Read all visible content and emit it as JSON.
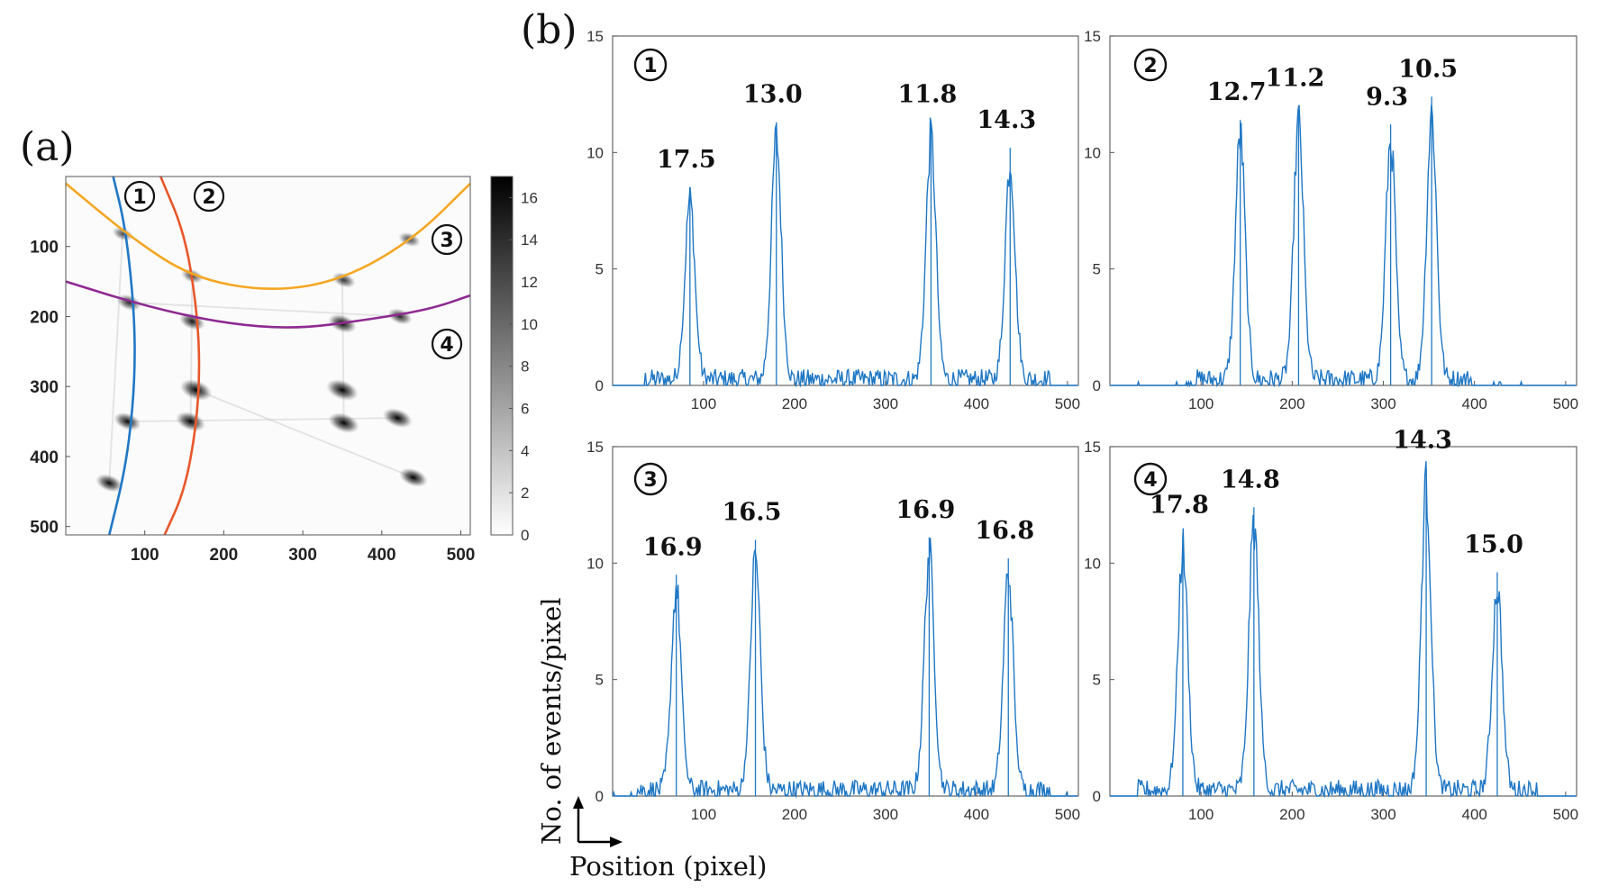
{
  "panel_a_label": "(a)",
  "panel_b_label": "(b)",
  "chart_data": [
    {
      "type": "heatmap",
      "id": "a",
      "xlim": [
        0,
        512
      ],
      "ylim": [
        512,
        0
      ],
      "xticks": [
        100,
        200,
        300,
        400,
        500
      ],
      "yticks": [
        100,
        200,
        300,
        400,
        500
      ],
      "colorbar": {
        "range": [
          0,
          17
        ],
        "ticks": [
          0,
          2,
          4,
          6,
          8,
          10,
          12,
          14,
          16
        ]
      },
      "curves": [
        {
          "name": "1",
          "color": "#1f77c4",
          "points": [
            [
              60,
              0
            ],
            [
              75,
              70
            ],
            [
              85,
              170
            ],
            [
              88,
              250
            ],
            [
              85,
              330
            ],
            [
              75,
              420
            ],
            [
              55,
              512
            ]
          ]
        },
        {
          "name": "2",
          "color": "#e8572a",
          "points": [
            [
              120,
              0
            ],
            [
              150,
              80
            ],
            [
              165,
              180
            ],
            [
              170,
              270
            ],
            [
              165,
              360
            ],
            [
              150,
              450
            ],
            [
              125,
              512
            ]
          ]
        },
        {
          "name": "3",
          "color": "#f5a623",
          "points": [
            [
              0,
              10
            ],
            [
              80,
              85
            ],
            [
              160,
              145
            ],
            [
              260,
              165
            ],
            [
              350,
              148
            ],
            [
              440,
              90
            ],
            [
              512,
              10
            ]
          ]
        },
        {
          "name": "4",
          "color": "#8e2a92",
          "points": [
            [
              0,
              150
            ],
            [
              100,
              185
            ],
            [
              200,
              210
            ],
            [
              290,
              218
            ],
            [
              380,
              205
            ],
            [
              460,
              190
            ],
            [
              512,
              170
            ]
          ]
        }
      ],
      "curve_labels": [
        "①",
        "②",
        "③",
        "④"
      ],
      "spots": [
        {
          "x": 72,
          "y": 82,
          "i": 6
        },
        {
          "x": 160,
          "y": 142,
          "i": 7
        },
        {
          "x": 352,
          "y": 148,
          "i": 8
        },
        {
          "x": 435,
          "y": 90,
          "i": 7
        },
        {
          "x": 80,
          "y": 180,
          "i": 9
        },
        {
          "x": 160,
          "y": 207,
          "i": 10
        },
        {
          "x": 350,
          "y": 210,
          "i": 12
        },
        {
          "x": 423,
          "y": 200,
          "i": 9
        },
        {
          "x": 165,
          "y": 305,
          "i": 15
        },
        {
          "x": 350,
          "y": 305,
          "i": 15
        },
        {
          "x": 78,
          "y": 350,
          "i": 11
        },
        {
          "x": 158,
          "y": 350,
          "i": 13
        },
        {
          "x": 352,
          "y": 352,
          "i": 14
        },
        {
          "x": 420,
          "y": 345,
          "i": 13
        },
        {
          "x": 55,
          "y": 438,
          "i": 11
        },
        {
          "x": 440,
          "y": 430,
          "i": 12
        }
      ]
    },
    {
      "type": "line",
      "id": "b1",
      "title": "①",
      "xlim": [
        0,
        512
      ],
      "ylim": [
        0,
        15
      ],
      "xticks": [
        100,
        200,
        300,
        400,
        500
      ],
      "yticks": [
        0,
        5,
        10,
        15
      ],
      "peaks": [
        {
          "x": 85,
          "height": 8.5,
          "label": "17.5"
        },
        {
          "x": 180,
          "height": 11.3,
          "label": "13.0"
        },
        {
          "x": 350,
          "height": 11.3,
          "label": "11.8"
        },
        {
          "x": 437,
          "height": 10.2,
          "label": "14.3"
        }
      ]
    },
    {
      "type": "line",
      "id": "b2",
      "title": "②",
      "xlim": [
        0,
        512
      ],
      "ylim": [
        0,
        15
      ],
      "xticks": [
        100,
        200,
        300,
        400,
        500
      ],
      "yticks": [
        0,
        5,
        10,
        15
      ],
      "peaks": [
        {
          "x": 143,
          "height": 11.4,
          "label": "12.7"
        },
        {
          "x": 207,
          "height": 12.0,
          "label": "11.2"
        },
        {
          "x": 308,
          "height": 11.2,
          "label": "9.3"
        },
        {
          "x": 353,
          "height": 12.4,
          "label": "10.5"
        }
      ]
    },
    {
      "type": "line",
      "id": "b3",
      "title": "③",
      "xlim": [
        0,
        512
      ],
      "ylim": [
        0,
        15
      ],
      "xticks": [
        100,
        200,
        300,
        400,
        500
      ],
      "yticks": [
        0,
        5,
        10,
        15
      ],
      "peaks": [
        {
          "x": 70,
          "height": 9.5,
          "label": "16.9"
        },
        {
          "x": 157,
          "height": 11.0,
          "label": "16.5"
        },
        {
          "x": 348,
          "height": 11.1,
          "label": "16.9"
        },
        {
          "x": 435,
          "height": 10.2,
          "label": "16.8"
        }
      ]
    },
    {
      "type": "line",
      "id": "b4",
      "title": "④",
      "xlim": [
        0,
        512
      ],
      "ylim": [
        0,
        15
      ],
      "xticks": [
        100,
        200,
        300,
        400,
        500
      ],
      "yticks": [
        0,
        5,
        10,
        15
      ],
      "peaks": [
        {
          "x": 80,
          "height": 11.3,
          "label": "17.8"
        },
        {
          "x": 158,
          "height": 12.4,
          "label": "14.8"
        },
        {
          "x": 347,
          "height": 14.1,
          "label": "14.3"
        },
        {
          "x": 425,
          "height": 9.6,
          "label": "15.0"
        }
      ]
    }
  ],
  "axis_titles": {
    "y": "No. of events/pixel",
    "x": "Position (pixel)"
  },
  "colors": {
    "line": "#1f77c4",
    "axis": "#666666"
  }
}
